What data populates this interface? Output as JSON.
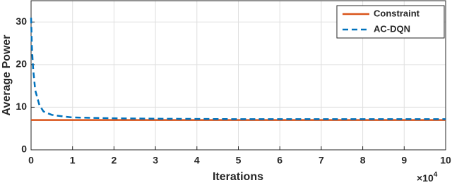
{
  "chart_data": {
    "type": "line",
    "x_label": "Iterations",
    "y_label": "Average Power",
    "x_multiplier": "×10",
    "x_multiplier_exponent": "4",
    "xlim": [
      0,
      10
    ],
    "xticks": [
      0,
      1,
      2,
      3,
      4,
      5,
      6,
      7,
      8,
      9,
      10
    ],
    "ylim": [
      0,
      35
    ],
    "yticks": [
      0,
      10,
      20,
      30
    ],
    "grid": true,
    "legend": "northeast",
    "series": [
      {
        "name": "Constraint",
        "color": "#d95319",
        "dash": "solid",
        "x": [
          0,
          10
        ],
        "values": [
          7,
          7
        ]
      },
      {
        "name": "AC-DQN",
        "color": "#0072bd",
        "dash": "dashed",
        "x": [
          0,
          0.02,
          0.05,
          0.1,
          0.2,
          0.3,
          0.5,
          0.8,
          1,
          1.5,
          2,
          3,
          4,
          5,
          6,
          7,
          8,
          9,
          10
        ],
        "values": [
          31,
          24,
          19,
          14,
          10.5,
          9,
          8.2,
          7.8,
          7.6,
          7.5,
          7.4,
          7.3,
          7.25,
          7.2,
          7.2,
          7.2,
          7.2,
          7.2,
          7.2
        ]
      }
    ]
  }
}
